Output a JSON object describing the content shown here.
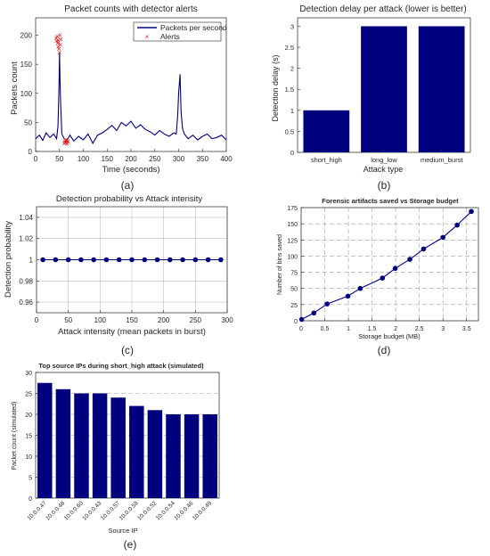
{
  "panel_labels": [
    "(a)",
    "(b)",
    "(c)",
    "(d)",
    "(e)"
  ],
  "colors": {
    "series": "#00007f",
    "alert": "#e31a1c",
    "axis": "#262626",
    "grid_c": "#c0c0c0",
    "grid_d": "#a0a0a0"
  },
  "chart_data": [
    {
      "type": "line",
      "title": "Packet counts with detector alerts",
      "xlabel": "Time (seconds)",
      "ylabel": "Packets count",
      "xlim": [
        0,
        400
      ],
      "ylim": [
        0,
        230
      ],
      "xticks": [
        0,
        50,
        100,
        150,
        200,
        250,
        300,
        350,
        400
      ],
      "yticks": [
        0,
        50,
        100,
        150,
        200
      ],
      "legend": {
        "position": "top-right",
        "entries": [
          "Packets per second",
          "Alerts"
        ]
      },
      "series": [
        {
          "name": "Packets per second",
          "x": [
            0,
            8,
            15,
            22,
            30,
            38,
            44,
            47,
            49,
            50,
            52,
            55,
            60,
            66,
            72,
            80,
            90,
            100,
            110,
            120,
            130,
            140,
            150,
            160,
            170,
            180,
            190,
            200,
            210,
            220,
            230,
            240,
            250,
            260,
            270,
            280,
            290,
            295,
            298,
            300,
            303,
            305,
            308,
            312,
            320,
            330,
            340,
            350,
            360,
            370,
            380,
            390,
            400
          ],
          "y": [
            22,
            28,
            19,
            32,
            24,
            30,
            22,
            44,
            110,
            170,
            95,
            30,
            22,
            20,
            28,
            18,
            26,
            20,
            30,
            14,
            28,
            32,
            38,
            45,
            36,
            50,
            44,
            52,
            40,
            46,
            38,
            34,
            28,
            36,
            30,
            26,
            32,
            30,
            60,
            100,
            133,
            70,
            40,
            30,
            22,
            28,
            20,
            26,
            30,
            22,
            24,
            28,
            20
          ]
        },
        {
          "name": "Alerts",
          "x": [
            43,
            44,
            45,
            46,
            47,
            47.5,
            48,
            49,
            50,
            51,
            52,
            53,
            60,
            61,
            62,
            63,
            64,
            65,
            66,
            67,
            68
          ],
          "y": [
            195,
            190,
            198,
            186,
            192,
            180,
            188,
            176,
            170,
            200,
            183,
            193,
            14,
            18,
            15,
            20,
            16,
            19,
            13,
            17,
            18
          ]
        }
      ]
    },
    {
      "type": "bar",
      "title": "Detection delay per attack (lower is better)",
      "xlabel": "Attack type",
      "ylabel": "Detection delay (s)",
      "ylim": [
        0,
        3.2
      ],
      "yticks": [
        0,
        0.5,
        1,
        1.5,
        2,
        2.5,
        3
      ],
      "categories": [
        "short_high",
        "long_low",
        "medium_burst"
      ],
      "values": [
        1,
        3,
        3
      ]
    },
    {
      "type": "line",
      "title": "Detection probability vs Attack intensity",
      "xlabel": "Attack intensity (mean packets in burst)",
      "ylabel": "Detection probability",
      "xlim": [
        0,
        300
      ],
      "ylim": [
        0.95,
        1.05
      ],
      "xticks": [
        0,
        50,
        100,
        150,
        200,
        250,
        300
      ],
      "yticks": [
        0.96,
        0.98,
        1,
        1.02,
        1.04
      ],
      "grid": true,
      "x": [
        10,
        30,
        50,
        70,
        90,
        110,
        130,
        150,
        170,
        190,
        210,
        230,
        250,
        270,
        290
      ],
      "y": [
        1,
        1,
        1,
        1,
        1,
        1,
        1,
        1,
        1,
        1,
        1,
        1,
        1,
        1,
        1
      ]
    },
    {
      "type": "line",
      "title": "Forensic artifacts saved vs Storage budget",
      "xlabel": "Storage budget (MB)",
      "ylabel": "Number of bins saved",
      "xlim": [
        0,
        3.75
      ],
      "ylim": [
        0,
        175
      ],
      "xticks": [
        0,
        0.5,
        1,
        1.5,
        2,
        2.5,
        3,
        3.5
      ],
      "yticks": [
        0,
        25,
        50,
        75,
        100,
        125,
        150,
        175
      ],
      "grid": true,
      "x": [
        0.01,
        0.27,
        0.55,
        0.99,
        1.25,
        1.72,
        1.99,
        2.3,
        2.59,
        3.0,
        3.3,
        3.6
      ],
      "y": [
        2,
        12,
        26,
        38,
        50,
        66,
        81,
        95,
        111,
        129,
        148,
        169
      ]
    },
    {
      "type": "bar",
      "title": "Top source IPs during short_high attack (simulated)",
      "xlabel": "Source IP",
      "ylabel": "Packet count (simulated)",
      "ylim": [
        0,
        30
      ],
      "yticks": [
        0,
        5,
        10,
        15,
        20,
        25,
        30
      ],
      "grid": true,
      "categories": [
        "10.0.0.47",
        "10.0.0.48",
        "10.0.0.60",
        "10.0.0.43",
        "10.0.0.57",
        "10.0.0.58",
        "10.0.0.52",
        "10.0.0.54",
        "10.0.0.46",
        "10.0.0.49"
      ],
      "values": [
        27.5,
        26,
        25,
        25,
        24,
        22,
        21,
        20,
        20,
        20
      ]
    }
  ]
}
